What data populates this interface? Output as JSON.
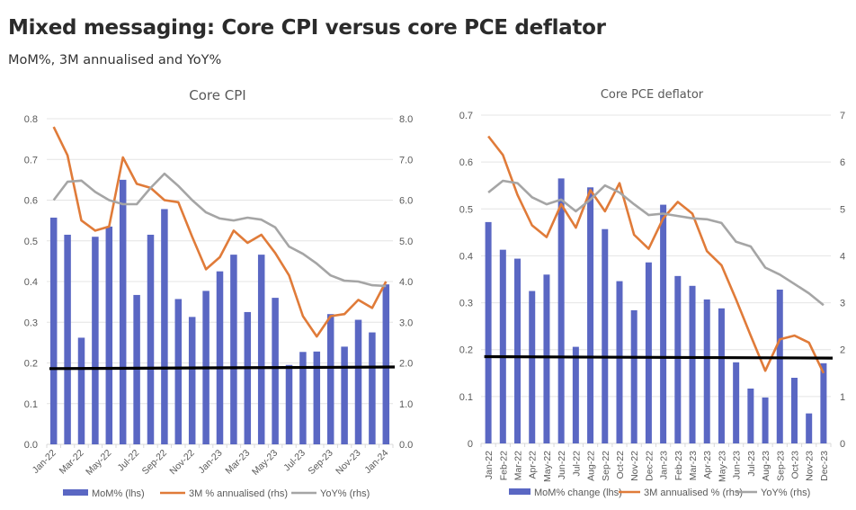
{
  "header": {
    "title": "Mixed messaging: Core CPI versus core PCE deflator",
    "subtitle": "MoM%, 3M annualised and YoY%"
  },
  "colors": {
    "bar": "#5a67c3",
    "three_month": "#e07b39",
    "yoy": "#a5a5a5",
    "reference": "#000000",
    "grid": "#e4e4e4"
  },
  "chart_data": [
    {
      "type": "bar+line",
      "title": "Core CPI",
      "x": [
        "Jan-22",
        "Feb-22",
        "Mar-22",
        "Apr-22",
        "May-22",
        "Jun-22",
        "Jul-22",
        "Aug-22",
        "Sep-22",
        "Oct-22",
        "Nov-22",
        "Dec-22",
        "Jan-23",
        "Feb-23",
        "Mar-23",
        "Apr-23",
        "May-23",
        "Jun-23",
        "Jul-23",
        "Aug-23",
        "Sep-23",
        "Oct-23",
        "Nov-23",
        "Dec-23",
        "Jan-24"
      ],
      "x_tick_labels": [
        "Jan-22",
        "Mar-22",
        "May-22",
        "Jul-22",
        "Sep-22",
        "Nov-22",
        "Jan-23",
        "Mar-23",
        "May-23",
        "Jul-23",
        "Sep-23",
        "Nov-23",
        "Jan-24"
      ],
      "y_left": {
        "min": 0,
        "max": 0.8,
        "step": 0.1,
        "ticks": [
          "0.0",
          "0.1",
          "0.2",
          "0.3",
          "0.4",
          "0.5",
          "0.6",
          "0.7",
          "0.8"
        ]
      },
      "y_right": {
        "min": 0,
        "max": 8,
        "step": 1,
        "ticks": [
          "0.0",
          "1.0",
          "2.0",
          "3.0",
          "4.0",
          "5.0",
          "6.0",
          "7.0",
          "8.0"
        ]
      },
      "grid": true,
      "legend_position": "bottom",
      "series": [
        {
          "name": "MoM% (lhs)",
          "kind": "bar",
          "axis": "left",
          "values": [
            0.557,
            0.515,
            0.262,
            0.51,
            0.535,
            0.65,
            0.367,
            0.515,
            0.578,
            0.357,
            0.313,
            0.377,
            0.425,
            0.466,
            0.325,
            0.466,
            0.36,
            0.195,
            0.227,
            0.228,
            0.32,
            0.24,
            0.306,
            0.275,
            0.393
          ]
        },
        {
          "name": "3M % annualised (rhs)",
          "kind": "line",
          "axis": "right",
          "values": [
            7.8,
            7.1,
            5.5,
            5.25,
            5.35,
            7.05,
            6.4,
            6.3,
            6.0,
            5.95,
            5.1,
            4.3,
            4.6,
            5.25,
            4.95,
            5.15,
            4.7,
            4.15,
            3.15,
            2.65,
            3.15,
            3.2,
            3.55,
            3.35,
            4.0
          ]
        },
        {
          "name": "YoY% (rhs)",
          "kind": "line",
          "axis": "right",
          "values": [
            6.0,
            6.45,
            6.48,
            6.2,
            6.0,
            5.9,
            5.9,
            6.3,
            6.65,
            6.35,
            6.0,
            5.7,
            5.55,
            5.5,
            5.57,
            5.52,
            5.33,
            4.86,
            4.68,
            4.44,
            4.15,
            4.02,
            4.0,
            3.91,
            3.89
          ]
        }
      ],
      "reference_line": {
        "axis": "left",
        "start": 0.186,
        "end": 0.19
      }
    },
    {
      "type": "bar+line",
      "title": "Core PCE deflator",
      "x": [
        "Jan-22",
        "Feb-22",
        "Mar-22",
        "Apr-22",
        "May-22",
        "Jun-22",
        "Jul-22",
        "Aug-22",
        "Sep-22",
        "Oct-22",
        "Nov-22",
        "Dec-22",
        "Jan-23",
        "Feb-23",
        "Mar-23",
        "Apr-23",
        "May-23",
        "Jun-23",
        "Jul-23",
        "Aug-23",
        "Sep-23",
        "Oct-23",
        "Nov-23",
        "Dec-23"
      ],
      "x_tick_labels": [
        "Jan-22",
        "Feb-22",
        "Mar-22",
        "Apr-22",
        "May-22",
        "Jun-22",
        "Jul-22",
        "Aug-22",
        "Sep-22",
        "Oct-22",
        "Nov-22",
        "Dec-22",
        "Jan-23",
        "Feb-23",
        "Mar-23",
        "Apr-23",
        "May-23",
        "Jun-23",
        "Jul-23",
        "Aug-23",
        "Sep-23",
        "Oct-23",
        "Nov-23",
        "Dec-23"
      ],
      "y_left": {
        "min": 0,
        "max": 0.7,
        "step": 0.1,
        "ticks": [
          "0",
          "0.1",
          "0.2",
          "0.3",
          "0.4",
          "0.5",
          "0.6",
          "0.7"
        ]
      },
      "y_right": {
        "min": 0,
        "max": 7,
        "step": 1,
        "ticks": [
          "0",
          "1",
          "2",
          "3",
          "4",
          "5",
          "6",
          "7"
        ]
      },
      "grid": true,
      "legend_position": "bottom",
      "series": [
        {
          "name": "MoM% change (lhs)",
          "kind": "bar",
          "axis": "left",
          "values": [
            0.472,
            0.413,
            0.394,
            0.325,
            0.36,
            0.565,
            0.206,
            0.546,
            0.457,
            0.346,
            0.284,
            0.386,
            0.509,
            0.357,
            0.336,
            0.307,
            0.288,
            0.173,
            0.117,
            0.098,
            0.328,
            0.14,
            0.064,
            0.171
          ]
        },
        {
          "name": "3M annualised % (rhs)",
          "kind": "line",
          "axis": "right",
          "values": [
            6.55,
            6.15,
            5.3,
            4.65,
            4.4,
            5.1,
            4.6,
            5.4,
            4.95,
            5.55,
            4.45,
            4.15,
            4.8,
            5.15,
            4.9,
            4.1,
            3.8,
            3.07,
            2.3,
            1.55,
            2.22,
            2.3,
            2.15,
            1.5
          ]
        },
        {
          "name": "YoY% (rhs)",
          "kind": "line",
          "axis": "right",
          "values": [
            5.35,
            5.6,
            5.55,
            5.25,
            5.1,
            5.2,
            4.95,
            5.2,
            5.5,
            5.35,
            5.1,
            4.87,
            4.9,
            4.85,
            4.8,
            4.78,
            4.7,
            4.3,
            4.2,
            3.75,
            3.6,
            3.4,
            3.2,
            2.95
          ]
        }
      ],
      "reference_line": {
        "axis": "left",
        "start": 0.185,
        "end": 0.182
      }
    }
  ]
}
